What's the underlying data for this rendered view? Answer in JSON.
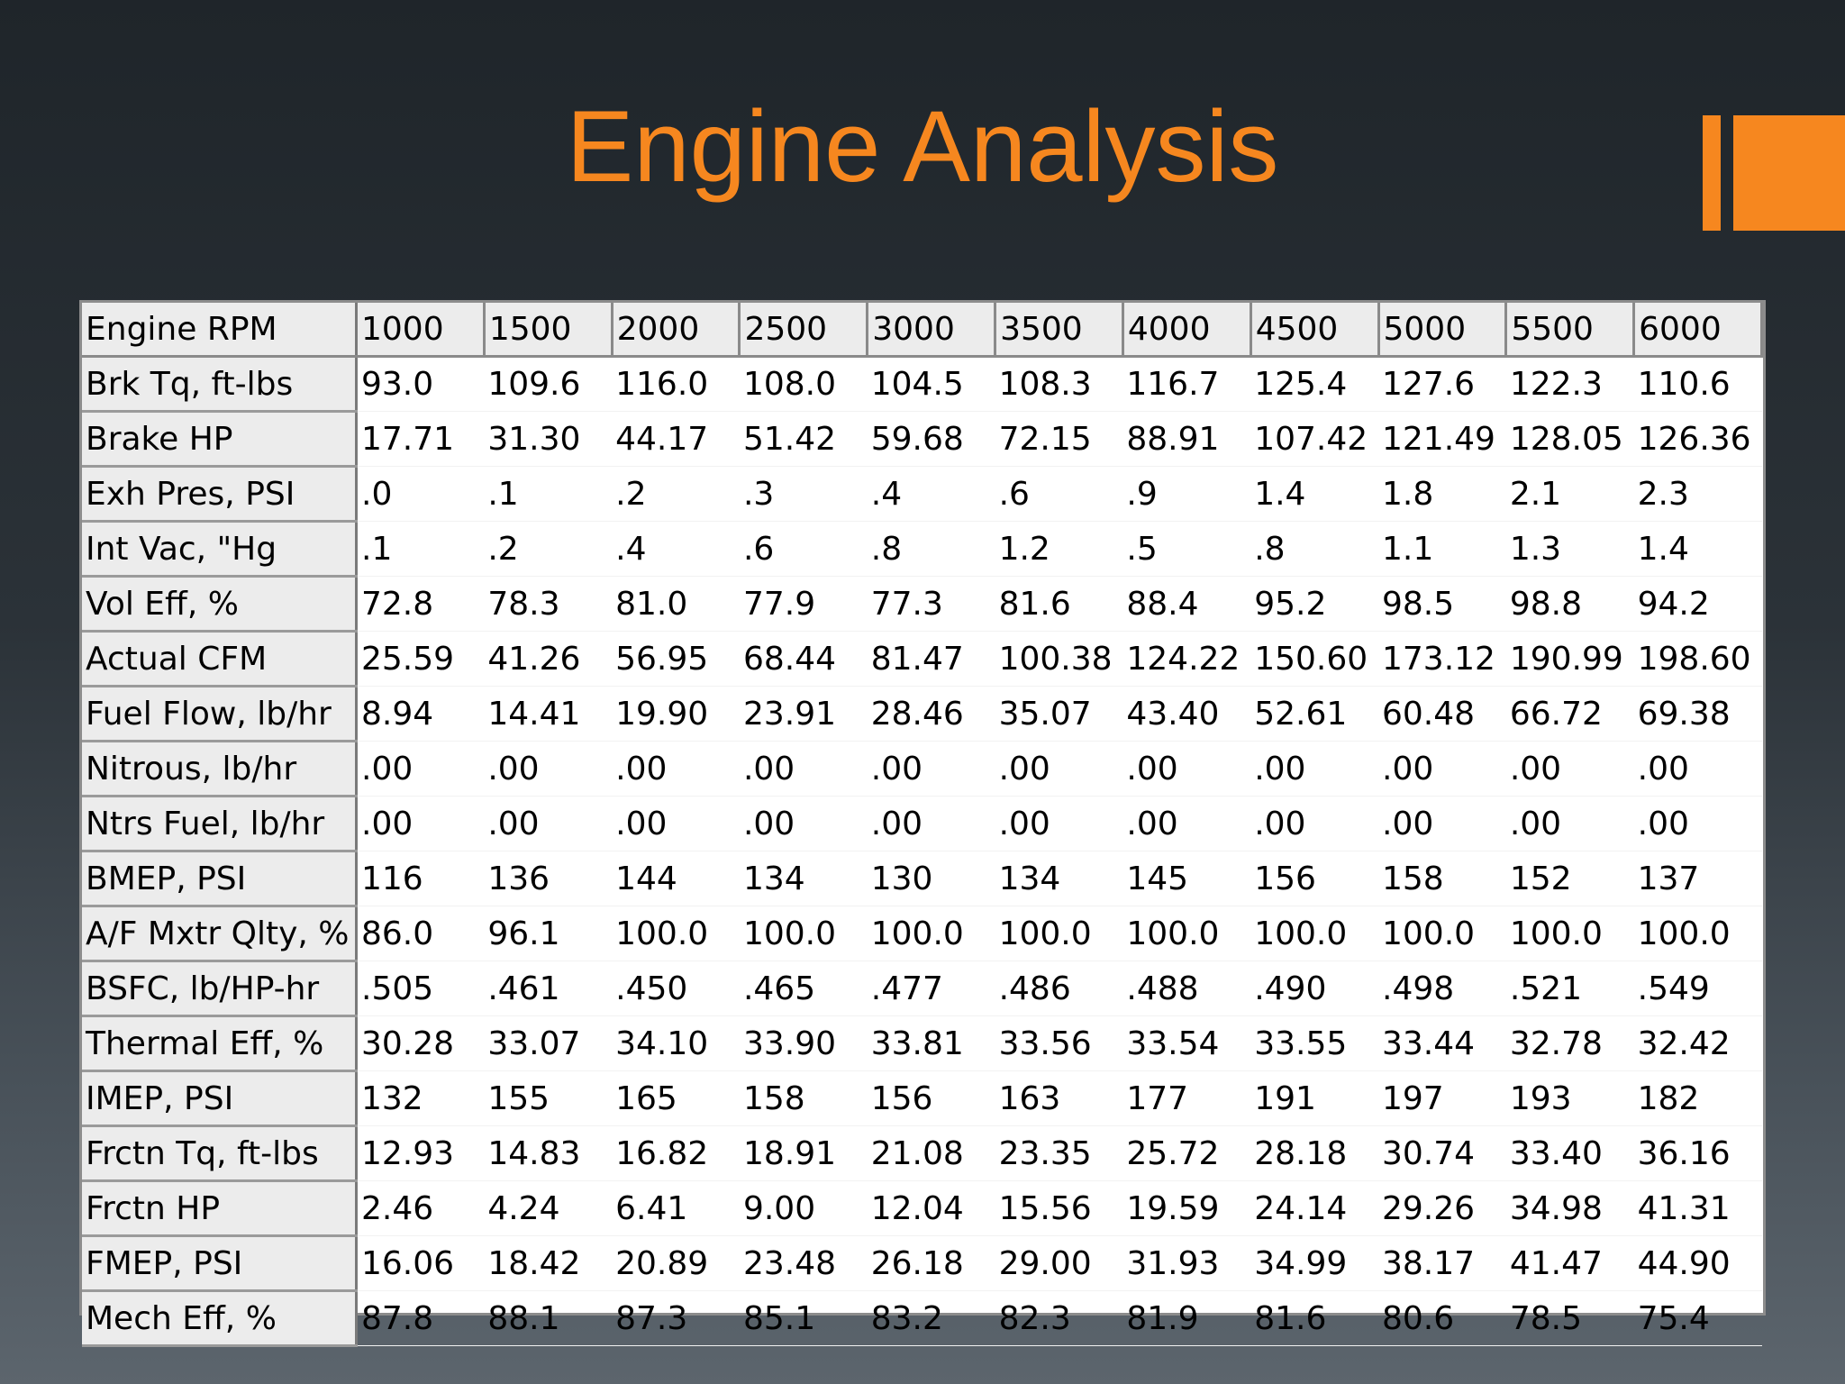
{
  "title": "Engine Analysis",
  "accent_color": "#f6871f",
  "table": {
    "header": [
      "Engine RPM",
      "1000",
      "1500",
      "2000",
      "2500",
      "3000",
      "3500",
      "4000",
      "4500",
      "5000",
      "5500",
      "6000"
    ],
    "rows": [
      {
        "label": "Brk Tq, ft-lbs",
        "values": [
          "93.0",
          "109.6",
          "116.0",
          "108.0",
          "104.5",
          "108.3",
          "116.7",
          "125.4",
          "127.6",
          "122.3",
          "110.6"
        ]
      },
      {
        "label": "Brake HP",
        "values": [
          "17.71",
          "31.30",
          "44.17",
          "51.42",
          "59.68",
          "72.15",
          "88.91",
          "107.42",
          "121.49",
          "128.05",
          "126.36"
        ]
      },
      {
        "label": "Exh Pres, PSI",
        "values": [
          ".0",
          ".1",
          ".2",
          ".3",
          ".4",
          ".6",
          ".9",
          "1.4",
          "1.8",
          "2.1",
          "2.3"
        ]
      },
      {
        "label": "Int Vac, \"Hg",
        "values": [
          ".1",
          ".2",
          ".4",
          ".6",
          ".8",
          "1.2",
          ".5",
          ".8",
          "1.1",
          "1.3",
          "1.4"
        ]
      },
      {
        "label": "Vol Eff, %",
        "values": [
          "72.8",
          "78.3",
          "81.0",
          "77.9",
          "77.3",
          "81.6",
          "88.4",
          "95.2",
          "98.5",
          "98.8",
          "94.2"
        ]
      },
      {
        "label": "Actual CFM",
        "values": [
          "25.59",
          "41.26",
          "56.95",
          "68.44",
          "81.47",
          "100.38",
          "124.22",
          "150.60",
          "173.12",
          "190.99",
          "198.60"
        ]
      },
      {
        "label": "Fuel Flow, lb/hr",
        "values": [
          "8.94",
          "14.41",
          "19.90",
          "23.91",
          "28.46",
          "35.07",
          "43.40",
          "52.61",
          "60.48",
          "66.72",
          "69.38"
        ]
      },
      {
        "label": "Nitrous, lb/hr",
        "values": [
          ".00",
          ".00",
          ".00",
          ".00",
          ".00",
          ".00",
          ".00",
          ".00",
          ".00",
          ".00",
          ".00"
        ]
      },
      {
        "label": "Ntrs Fuel, lb/hr",
        "values": [
          ".00",
          ".00",
          ".00",
          ".00",
          ".00",
          ".00",
          ".00",
          ".00",
          ".00",
          ".00",
          ".00"
        ]
      },
      {
        "label": "BMEP, PSI",
        "values": [
          "116",
          "136",
          "144",
          "134",
          "130",
          "134",
          "145",
          "156",
          "158",
          "152",
          "137"
        ]
      },
      {
        "label": "A/F Mxtr Qlty, %",
        "values": [
          "86.0",
          "96.1",
          "100.0",
          "100.0",
          "100.0",
          "100.0",
          "100.0",
          "100.0",
          "100.0",
          "100.0",
          "100.0"
        ]
      },
      {
        "label": "BSFC, lb/HP-hr",
        "values": [
          ".505",
          ".461",
          ".450",
          ".465",
          ".477",
          ".486",
          ".488",
          ".490",
          ".498",
          ".521",
          ".549"
        ]
      },
      {
        "label": "Thermal Eff, %",
        "values": [
          "30.28",
          "33.07",
          "34.10",
          "33.90",
          "33.81",
          "33.56",
          "33.54",
          "33.55",
          "33.44",
          "32.78",
          "32.42"
        ]
      },
      {
        "label": "IMEP, PSI",
        "values": [
          "132",
          "155",
          "165",
          "158",
          "156",
          "163",
          "177",
          "191",
          "197",
          "193",
          "182"
        ]
      },
      {
        "label": "Frctn Tq, ft-lbs",
        "values": [
          "12.93",
          "14.83",
          "16.82",
          "18.91",
          "21.08",
          "23.35",
          "25.72",
          "28.18",
          "30.74",
          "33.40",
          "36.16"
        ]
      },
      {
        "label": "Frctn HP",
        "values": [
          "2.46",
          "4.24",
          "6.41",
          "9.00",
          "12.04",
          "15.56",
          "19.59",
          "24.14",
          "29.26",
          "34.98",
          "41.31"
        ]
      },
      {
        "label": "FMEP, PSI",
        "values": [
          "16.06",
          "18.42",
          "20.89",
          "23.48",
          "26.18",
          "29.00",
          "31.93",
          "34.99",
          "38.17",
          "41.47",
          "44.90"
        ]
      },
      {
        "label": "Mech Eff, %",
        "values": [
          "87.8",
          "88.1",
          "87.3",
          "85.1",
          "83.2",
          "82.3",
          "81.9",
          "81.6",
          "80.6",
          "78.5",
          "75.4"
        ]
      }
    ]
  }
}
